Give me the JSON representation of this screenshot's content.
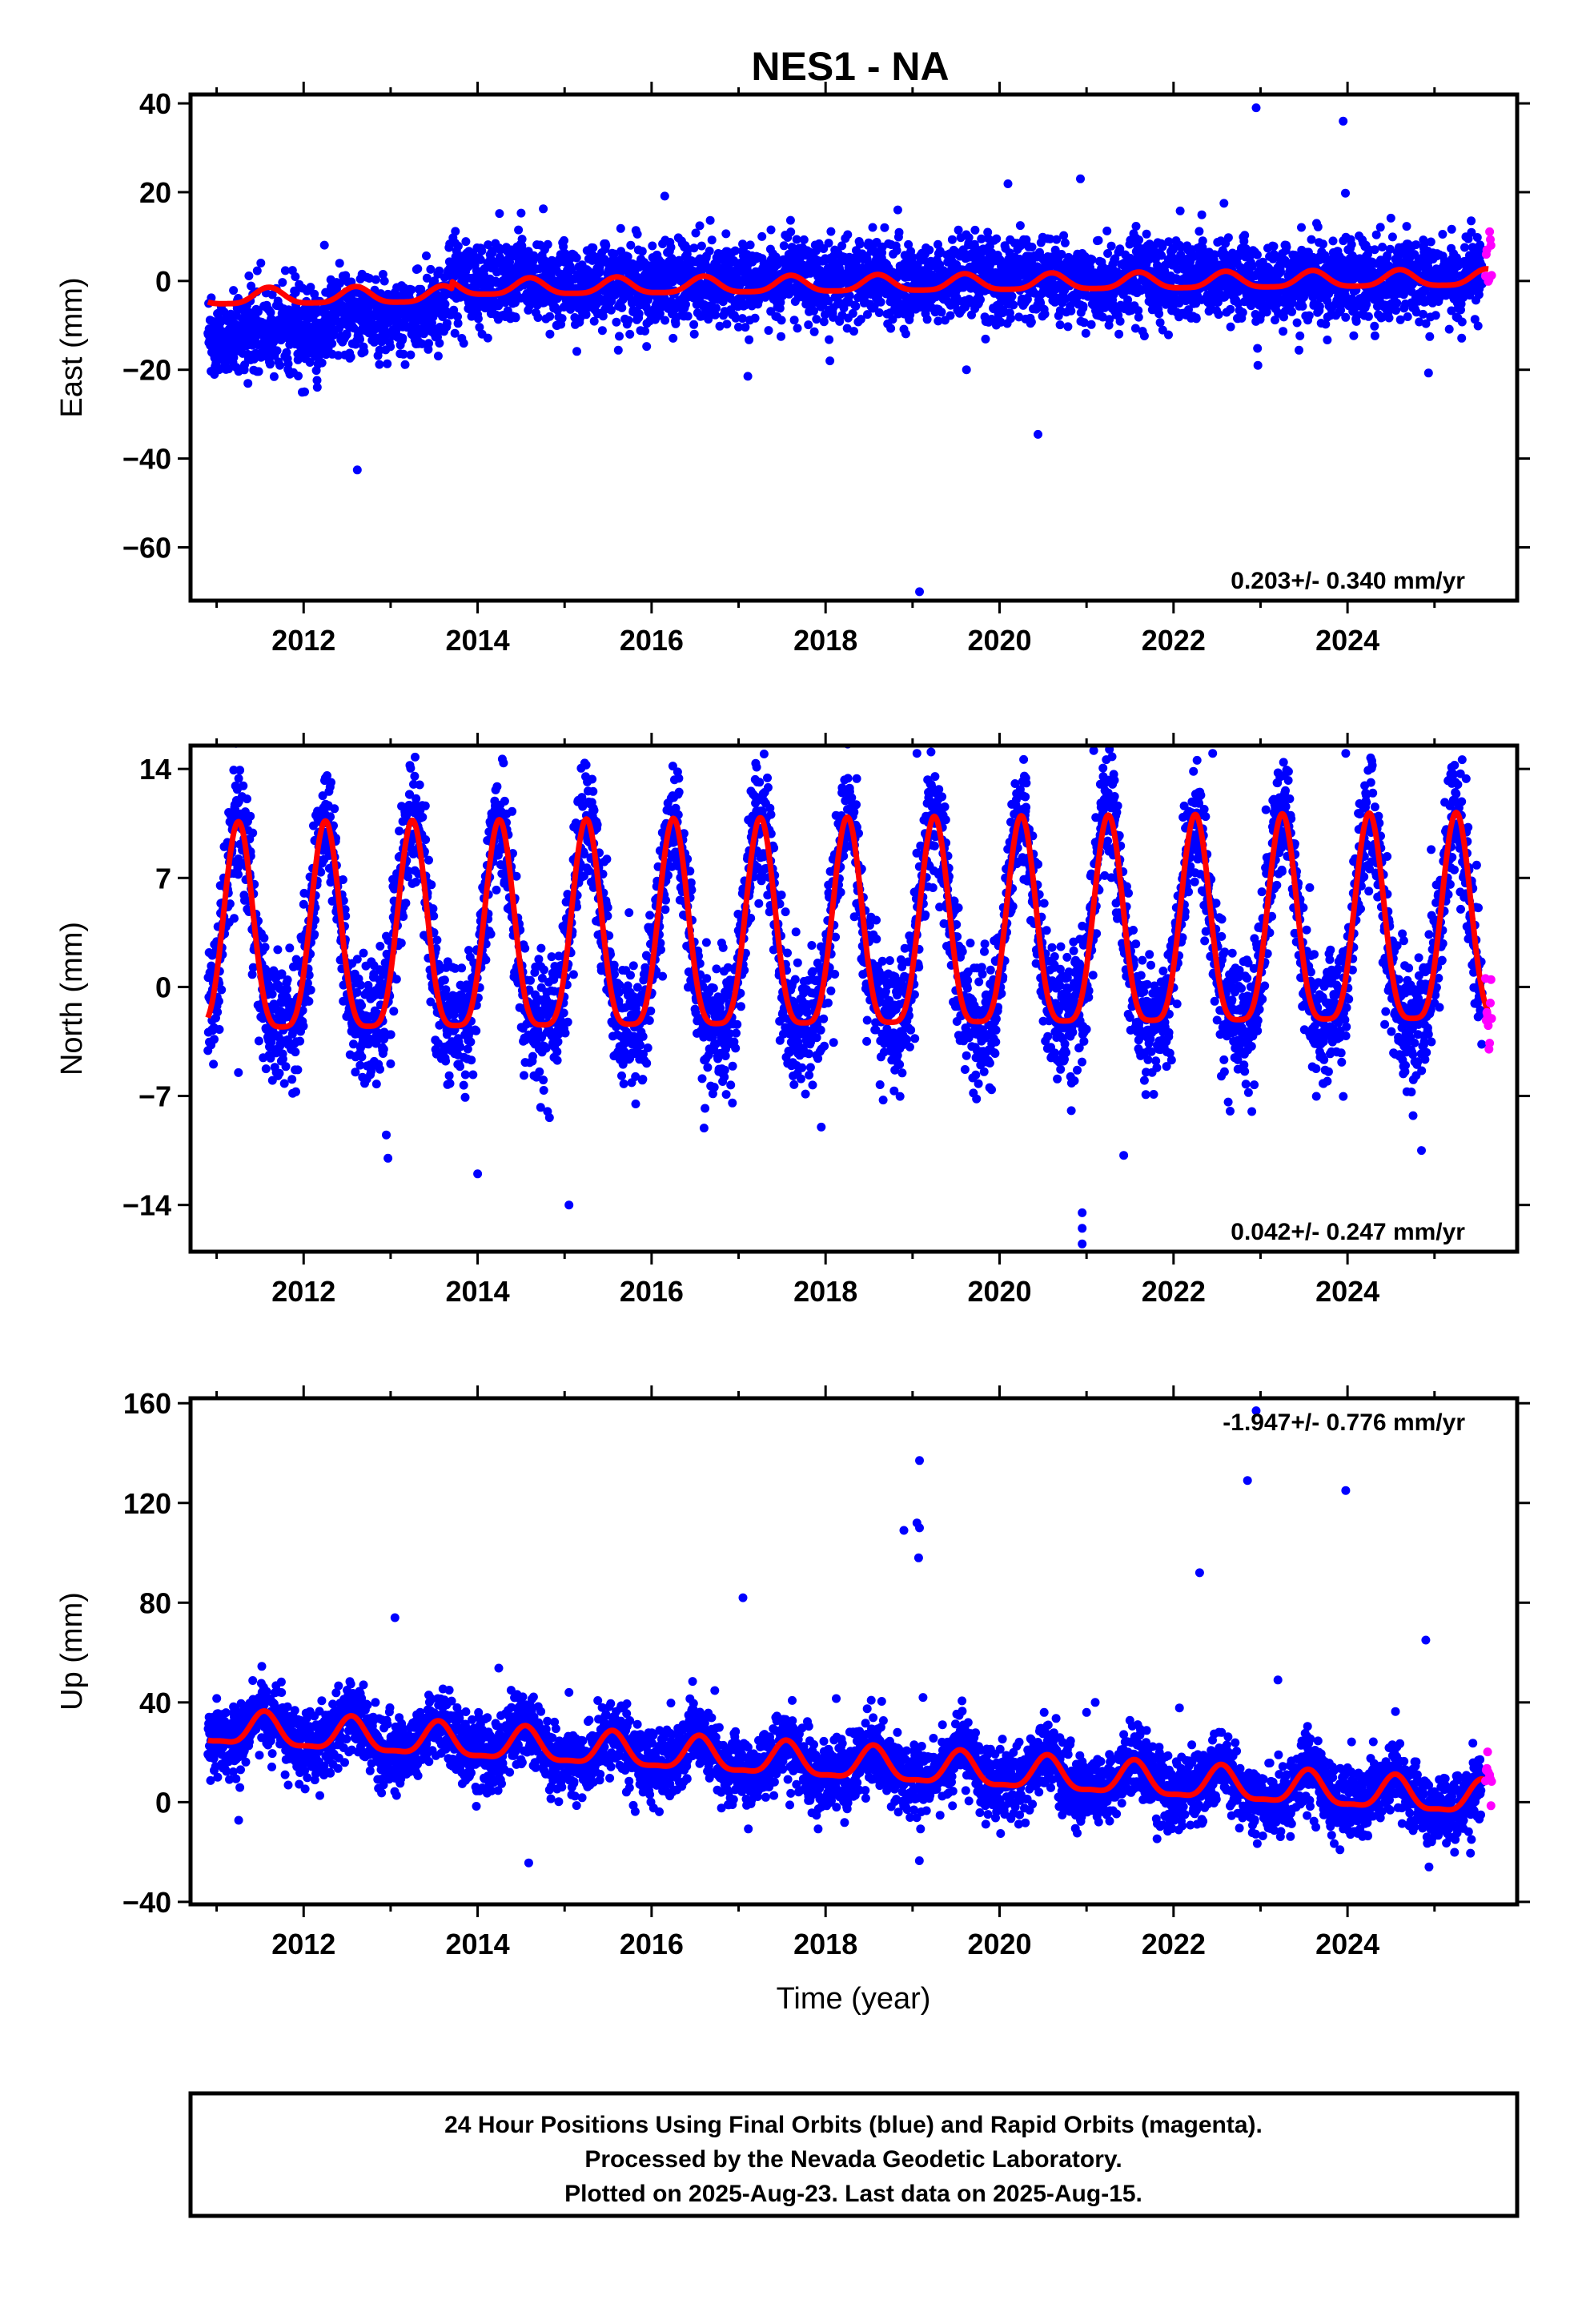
{
  "title": "NES1 - NA",
  "xlabel": "Time (year)",
  "footer": {
    "lines": [
      "24 Hour Positions Using Final Orbits (blue) and Rapid Orbits (magenta).",
      "Processed by the Nevada Geodetic Laboratory.",
      "Plotted on 2025-Aug-23. Last data on 2025-Aug-15."
    ]
  },
  "colors": {
    "final": "#0000ff",
    "rapid": "#ff00ff",
    "model": "#ff0000",
    "axis": "#000000"
  },
  "chart_data": [
    {
      "type": "scatter",
      "panel": "east",
      "ylabel": "East (mm)",
      "rate_text": "0.203+/- 0.340 mm/yr",
      "xlim": [
        2010.7,
        2025.95
      ],
      "ylim": [
        -72,
        42
      ],
      "xticks": [
        2012,
        2014,
        2016,
        2018,
        2020,
        2022,
        2024
      ],
      "yticks": [
        -60,
        -40,
        -20,
        0,
        20,
        40
      ],
      "grid": false,
      "data_span": [
        2010.9,
        2025.55
      ],
      "rapid_span": [
        2025.55,
        2025.62
      ],
      "model": {
        "offset": -1.0,
        "slope_mm_per_yr": 0.203,
        "annual_amp": 2.0,
        "annual_phase": 0.6,
        "semiannual_amp": 0.5
      },
      "trend_segments": [
        {
          "x": [
            2010.9,
            2013.65
          ],
          "y": [
            -13,
            -5
          ]
        },
        {
          "x": [
            2013.7,
            2025.55
          ],
          "y": [
            0,
            0
          ]
        }
      ],
      "scatter_sigma": 4.5,
      "outliers": [
        {
          "x": 2019.08,
          "y": -70
        },
        {
          "x": 2022.95,
          "y": 39
        },
        {
          "x": 2023.95,
          "y": 36
        },
        {
          "x": 2020.93,
          "y": 23
        },
        {
          "x": 2018.83,
          "y": 16
        },
        {
          "x": 2019.62,
          "y": -20
        },
        {
          "x": 2022.97,
          "y": -19
        },
        {
          "x": 2018.05,
          "y": -18
        },
        {
          "x": 2015.75,
          "y": -12
        }
      ]
    },
    {
      "type": "scatter",
      "panel": "north",
      "ylabel": "North (mm)",
      "rate_text": "0.042+/- 0.247 mm/yr",
      "xlim": [
        2010.7,
        2025.95
      ],
      "ylim": [
        -17,
        15.5
      ],
      "xticks": [
        2012,
        2014,
        2016,
        2018,
        2020,
        2022,
        2024
      ],
      "yticks": [
        -14,
        -7,
        0,
        7,
        14
      ],
      "grid": false,
      "data_span": [
        2010.9,
        2025.55
      ],
      "rapid_span": [
        2025.55,
        2025.62
      ],
      "model": {
        "offset": 2.7,
        "slope_mm_per_yr": 0.042,
        "annual_amp": 6.6,
        "annual_phase": 0.25,
        "semiannual_amp": 1.6
      },
      "trend_segments": [],
      "scatter_sigma": 2.0,
      "outliers": [
        {
          "x": 2019.05,
          "y": 15
        },
        {
          "x": 2022.45,
          "y": 15
        },
        {
          "x": 2023.98,
          "y": 15
        },
        {
          "x": 2020.95,
          "y": -14.5
        },
        {
          "x": 2020.95,
          "y": -15.5
        },
        {
          "x": 2020.95,
          "y": -16.5
        },
        {
          "x": 2015.05,
          "y": -14
        },
        {
          "x": 2014.0,
          "y": -12
        },
        {
          "x": 2012.95,
          "y": -9.5
        },
        {
          "x": 2012.97,
          "y": -11
        },
        {
          "x": 2024.85,
          "y": -10.5
        },
        {
          "x": 2011.25,
          "y": -5.5
        },
        {
          "x": 2017.95,
          "y": -9
        },
        {
          "x": 2022.9,
          "y": -8
        }
      ]
    },
    {
      "type": "scatter",
      "panel": "up",
      "ylabel": "Up (mm)",
      "rate_text": "-1.947+/- 0.776 mm/yr",
      "xlim": [
        2010.7,
        2025.95
      ],
      "ylim": [
        -41,
        162
      ],
      "xticks": [
        2012,
        2014,
        2016,
        2018,
        2020,
        2022,
        2024
      ],
      "yticks": [
        -40,
        0,
        40,
        80,
        120,
        160
      ],
      "grid": false,
      "data_span": [
        2010.9,
        2025.55
      ],
      "rapid_span": [
        2025.55,
        2025.62
      ],
      "model": {
        "offset": 15.5,
        "slope_mm_per_yr": -1.947,
        "annual_amp": 6.5,
        "annual_phase": 0.55,
        "semiannual_amp": 2.0
      },
      "trend_segments": [],
      "scatter_sigma": 7.0,
      "outliers": [
        {
          "x": 2022.95,
          "y": 157
        },
        {
          "x": 2019.08,
          "y": 137
        },
        {
          "x": 2022.85,
          "y": 129
        },
        {
          "x": 2023.98,
          "y": 125
        },
        {
          "x": 2019.05,
          "y": 112
        },
        {
          "x": 2019.08,
          "y": 110
        },
        {
          "x": 2018.9,
          "y": 109
        },
        {
          "x": 2019.07,
          "y": 98
        },
        {
          "x": 2022.3,
          "y": 92
        },
        {
          "x": 2017.05,
          "y": 82
        },
        {
          "x": 2013.05,
          "y": 74
        },
        {
          "x": 2024.9,
          "y": 65
        },
        {
          "x": 2023.2,
          "y": 49
        },
        {
          "x": 2015.05,
          "y": 44
        },
        {
          "x": 2019.12,
          "y": 42
        },
        {
          "x": 2021.1,
          "y": 40
        },
        {
          "x": 2021.0,
          "y": 36
        }
      ]
    }
  ]
}
